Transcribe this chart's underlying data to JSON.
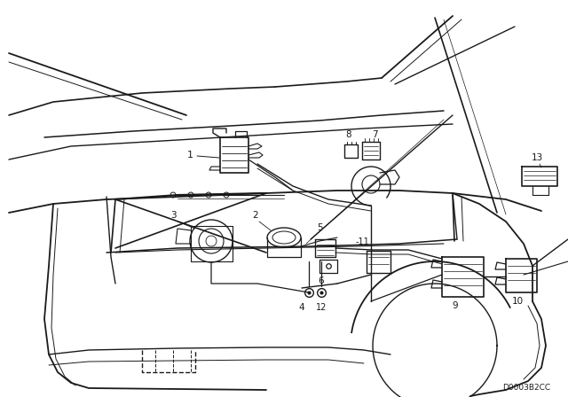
{
  "background_color": "#ffffff",
  "line_color": "#1a1a1a",
  "diagram_code": "D0003B2CC",
  "fig_width": 6.4,
  "fig_height": 4.48,
  "dpi": 100
}
